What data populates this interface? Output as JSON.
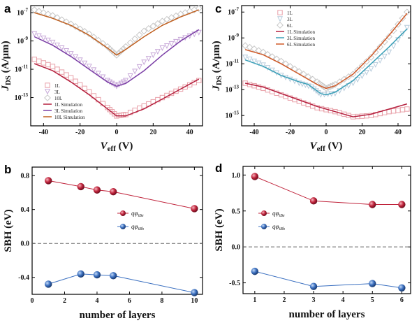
{
  "figure": {
    "panels": [
      "a",
      "c",
      "b",
      "d"
    ]
  },
  "chart_data": [
    {
      "id": "a",
      "type": "line",
      "label": "a",
      "xlabel_main": "V",
      "xlabel_sub": "eff",
      "xlabel_unit": " (V)",
      "ylabel_main": "J",
      "ylabel_sub": "DS",
      "ylabel_unit": " (A/μm)",
      "xlim": [
        -47,
        47
      ],
      "ylog": true,
      "ylim_exp": [
        -15,
        -6.5
      ],
      "xticks": [
        -40,
        -20,
        0,
        20,
        40
      ],
      "yticks": [
        {
          "e": -7,
          "label": "10",
          "sup": "-7"
        },
        {
          "e": -9,
          "label": "10",
          "sup": "-9"
        },
        {
          "e": -11,
          "label": "10",
          "sup": "-11"
        },
        {
          "e": -13,
          "label": "10",
          "sup": "-13"
        }
      ],
      "legend": [
        "1L",
        "3L",
        "10L",
        "1L Simulation",
        "3L Simulation",
        "10L Simulation"
      ],
      "series": [
        {
          "name": "1L",
          "kind": "measured",
          "color": "#e8a0a8",
          "marker": "square",
          "x": [
            -45,
            -35,
            -25,
            -15,
            -5,
            0,
            5,
            15,
            25,
            35,
            45
          ],
          "y_exp": [
            -10.3,
            -10.8,
            -11.6,
            -12.6,
            -13.7,
            -14.3,
            -14.2,
            -13.6,
            -13.0,
            -12.4,
            -11.8
          ]
        },
        {
          "name": "3L",
          "kind": "measured",
          "color": "#c7a8d8",
          "marker": "triangle",
          "x": [
            -45,
            -35,
            -25,
            -15,
            -5,
            0,
            5,
            15,
            25,
            35,
            45
          ],
          "y_exp": [
            -8.5,
            -9.1,
            -9.9,
            -10.8,
            -11.8,
            -12.2,
            -11.8,
            -10.5,
            -9.5,
            -8.9,
            -8.4
          ]
        },
        {
          "name": "10L",
          "kind": "measured",
          "color": "#c8c8c8",
          "marker": "diamond",
          "x": [
            -45,
            -35,
            -25,
            -15,
            -5,
            0,
            5,
            15,
            25,
            35,
            45
          ],
          "y_exp": [
            -6.8,
            -7.2,
            -7.8,
            -8.5,
            -9.4,
            -10.0,
            -9.4,
            -8.3,
            -7.6,
            -7.1,
            -6.7
          ]
        },
        {
          "name": "1L Simulation",
          "kind": "simulation",
          "color": "#b5213f",
          "x": [
            -45,
            -35,
            -25,
            -15,
            -5,
            0,
            5,
            15,
            25,
            35,
            45
          ],
          "y_exp": [
            -10.6,
            -11.1,
            -11.9,
            -12.8,
            -13.8,
            -14.3,
            -14.3,
            -13.8,
            -13.1,
            -12.4,
            -11.7
          ]
        },
        {
          "name": "3L Simulation",
          "kind": "simulation",
          "color": "#7b3fa6",
          "x": [
            -45,
            -35,
            -25,
            -15,
            -5,
            0,
            5,
            15,
            25,
            35,
            45
          ],
          "y_exp": [
            -8.7,
            -9.3,
            -10.1,
            -11.0,
            -11.9,
            -12.2,
            -12.0,
            -11.1,
            -10.0,
            -9.0,
            -8.2
          ]
        },
        {
          "name": "10L Simulation",
          "kind": "simulation",
          "color": "#c06020",
          "x": [
            -45,
            -35,
            -25,
            -15,
            -5,
            0,
            5,
            15,
            25,
            35,
            45
          ],
          "y_exp": [
            -7.0,
            -7.4,
            -7.9,
            -8.6,
            -9.5,
            -10.0,
            -9.6,
            -8.7,
            -7.9,
            -7.3,
            -6.8
          ]
        }
      ]
    },
    {
      "id": "c",
      "type": "line",
      "label": "c",
      "xlabel_main": "V",
      "xlabel_sub": "eff",
      "xlabel_unit": " (V)",
      "ylabel_main": "J",
      "ylabel_sub": "DS",
      "ylabel_unit": " (A/μm)",
      "xlim": [
        -47,
        47
      ],
      "ylog": true,
      "ylim_exp": [
        -15.8,
        -6.5
      ],
      "xticks": [
        -40,
        -20,
        0,
        20,
        40
      ],
      "yticks": [
        {
          "e": -7,
          "label": "10",
          "sup": "-7"
        },
        {
          "e": -9,
          "label": "10",
          "sup": "-9"
        },
        {
          "e": -11,
          "label": "10",
          "sup": "-11"
        },
        {
          "e": -13,
          "label": "10",
          "sup": "-13"
        },
        {
          "e": -15,
          "label": "10",
          "sup": "-15"
        }
      ],
      "legend": [
        "1L",
        "3L",
        "6L",
        "1L Simulation",
        "3L Simulation",
        "6L Simulation"
      ],
      "series": [
        {
          "name": "1L",
          "kind": "measured",
          "color": "#e8a0a8",
          "marker": "square",
          "x": [
            -45,
            -35,
            -25,
            -15,
            -5,
            5,
            15,
            25,
            35,
            45
          ],
          "y_exp": [
            -12.5,
            -12.9,
            -13.4,
            -13.9,
            -14.4,
            -14.7,
            -15.1,
            -15.0,
            -14.7,
            -14.5
          ]
        },
        {
          "name": "3L",
          "kind": "measured",
          "color": "#b8ccdc",
          "marker": "triangle",
          "x": [
            -45,
            -35,
            -25,
            -15,
            -8,
            -3,
            5,
            15,
            25,
            35,
            45
          ],
          "y_exp": [
            -10.5,
            -11.1,
            -11.9,
            -12.5,
            -12.8,
            -13.4,
            -13.3,
            -12.5,
            -11.4,
            -10.1,
            -8.2
          ]
        },
        {
          "name": "6L",
          "kind": "measured",
          "color": "#c8c8c8",
          "marker": "diamond",
          "x": [
            -45,
            -35,
            -25,
            -15,
            -5,
            0,
            5,
            15,
            25,
            35,
            45
          ],
          "y_exp": [
            -9.6,
            -10.1,
            -10.8,
            -11.6,
            -12.4,
            -12.9,
            -12.6,
            -11.8,
            -10.5,
            -8.9,
            -7.0
          ]
        },
        {
          "name": "1L Simulation",
          "kind": "simulation",
          "color": "#b5213f",
          "x": [
            -45,
            -35,
            -25,
            -15,
            -5,
            5,
            15,
            25,
            35,
            45
          ],
          "y_exp": [
            -12.5,
            -12.8,
            -13.3,
            -13.8,
            -14.3,
            -14.7,
            -15.1,
            -14.9,
            -14.5,
            -14.1
          ]
        },
        {
          "name": "3L Simulation",
          "kind": "simulation",
          "color": "#3aa0b8",
          "x": [
            -45,
            -35,
            -25,
            -15,
            -10,
            -7,
            -3,
            0,
            5,
            15,
            25,
            35,
            45
          ],
          "y_exp": [
            -10.7,
            -11.2,
            -11.9,
            -12.4,
            -12.6,
            -12.9,
            -13.3,
            -13.4,
            -13.2,
            -12.3,
            -11.0,
            -9.7,
            -8.3
          ]
        },
        {
          "name": "6L Simulation",
          "kind": "simulation",
          "color": "#d05a28",
          "x": [
            -45,
            -35,
            -25,
            -15,
            -5,
            0,
            5,
            15,
            25,
            35,
            45
          ],
          "y_exp": [
            -9.9,
            -10.3,
            -11.0,
            -11.8,
            -12.6,
            -12.9,
            -12.7,
            -11.8,
            -10.4,
            -8.8,
            -7.1
          ]
        }
      ]
    },
    {
      "id": "b",
      "type": "scatter",
      "label": "b",
      "xlabel": "number of layers",
      "ylabel": "SBH (eV)",
      "xlim": [
        0,
        10.5
      ],
      "ylim": [
        -0.6,
        0.9
      ],
      "xticks": [
        0,
        2,
        4,
        6,
        8,
        10
      ],
      "yticks": [
        {
          "v": 0.8,
          "label": "0.8"
        },
        {
          "v": 0.4,
          "label": "0.4"
        },
        {
          "v": 0.0,
          "label": "0.0"
        },
        {
          "v": -0.4,
          "label": "-0.4"
        }
      ],
      "zero_line": true,
      "legend": [
        {
          "main": "qφ",
          "sub": "iBe"
        },
        {
          "main": "qφ",
          "sub": "iBh"
        }
      ],
      "series": [
        {
          "name": "qφiBe",
          "color": "#c0233b",
          "x": [
            1,
            3,
            4,
            5,
            10
          ],
          "y": [
            0.74,
            0.67,
            0.63,
            0.61,
            0.41
          ]
        },
        {
          "name": "qφiBh",
          "color": "#3a6fc0",
          "x": [
            1,
            3,
            4,
            5,
            10
          ],
          "y": [
            -0.48,
            -0.36,
            -0.37,
            -0.38,
            -0.58
          ]
        }
      ]
    },
    {
      "id": "d",
      "type": "scatter",
      "label": "d",
      "xlabel": "number of layers",
      "ylabel": "SBH (eV)",
      "xlim": [
        0.6,
        6.3
      ],
      "ylim": [
        -0.65,
        1.12
      ],
      "xticks": [
        1,
        2,
        3,
        4,
        5,
        6
      ],
      "yticks": [
        {
          "v": 1.0,
          "label": "1.0"
        },
        {
          "v": 0.5,
          "label": "0.5"
        },
        {
          "v": 0.0,
          "label": "0.0"
        },
        {
          "v": -0.5,
          "label": "-0.5"
        }
      ],
      "zero_line": true,
      "legend": [
        {
          "main": "qφ",
          "sub": "iBe"
        },
        {
          "main": "qφ",
          "sub": "iBh"
        }
      ],
      "series": [
        {
          "name": "qφiBe",
          "color": "#c0233b",
          "x": [
            1,
            3,
            5,
            6
          ],
          "y": [
            0.98,
            0.64,
            0.59,
            0.59
          ]
        },
        {
          "name": "qφiBh",
          "color": "#3a6fc0",
          "x": [
            1,
            3,
            5,
            6
          ],
          "y": [
            -0.34,
            -0.55,
            -0.51,
            -0.57
          ]
        }
      ]
    }
  ]
}
